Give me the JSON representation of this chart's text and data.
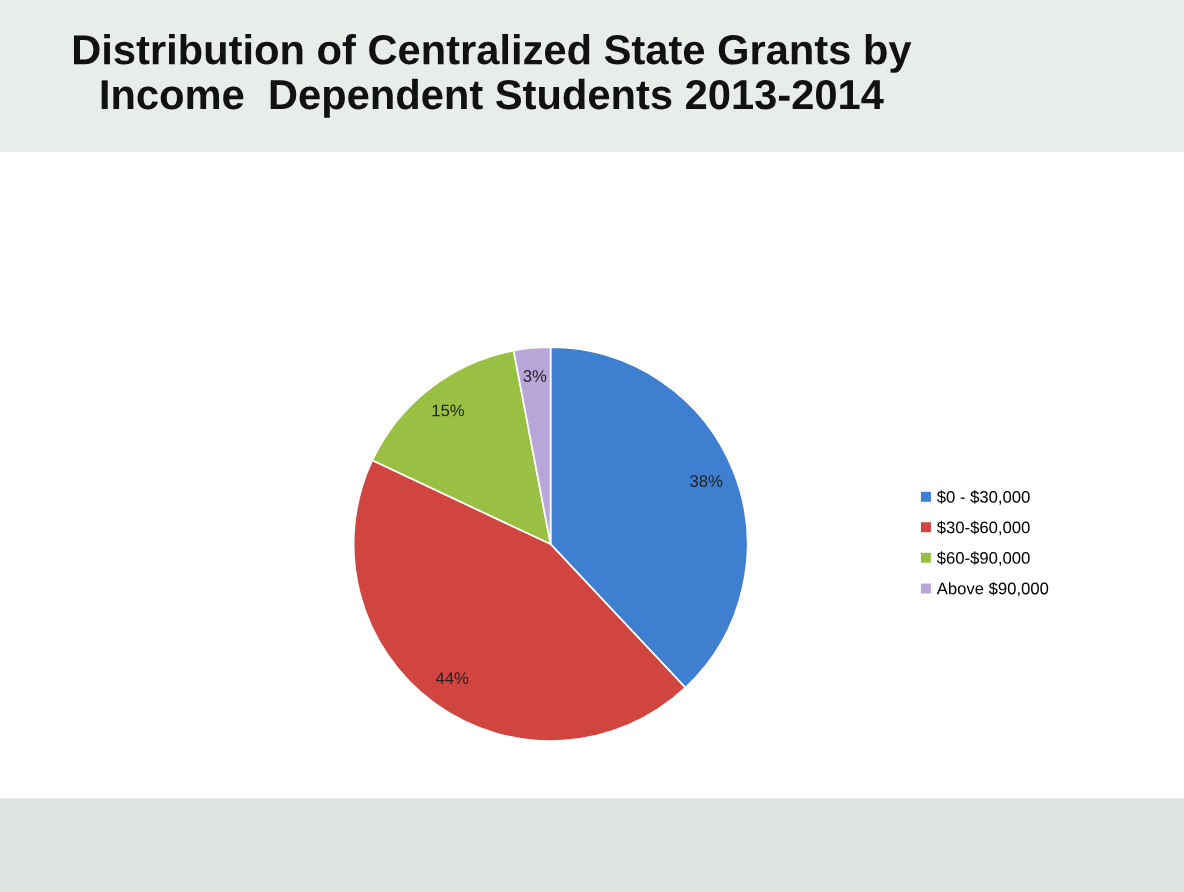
{
  "chart_data": {
    "type": "pie",
    "title": "Distribution of Centralized State Grants by Income  Dependent Students 2013-2014",
    "categories": [
      "$0 - $30,000",
      "$30-$60,000",
      "$60-$90,000",
      "Above $90,000"
    ],
    "values": [
      38,
      44,
      15,
      3
    ],
    "colors": [
      "#3f7fcf",
      "#d04540",
      "#9ac043",
      "#b9a6d8"
    ],
    "value_labels": [
      "38%",
      "44%",
      "15%",
      "3%"
    ],
    "legend": "right"
  }
}
